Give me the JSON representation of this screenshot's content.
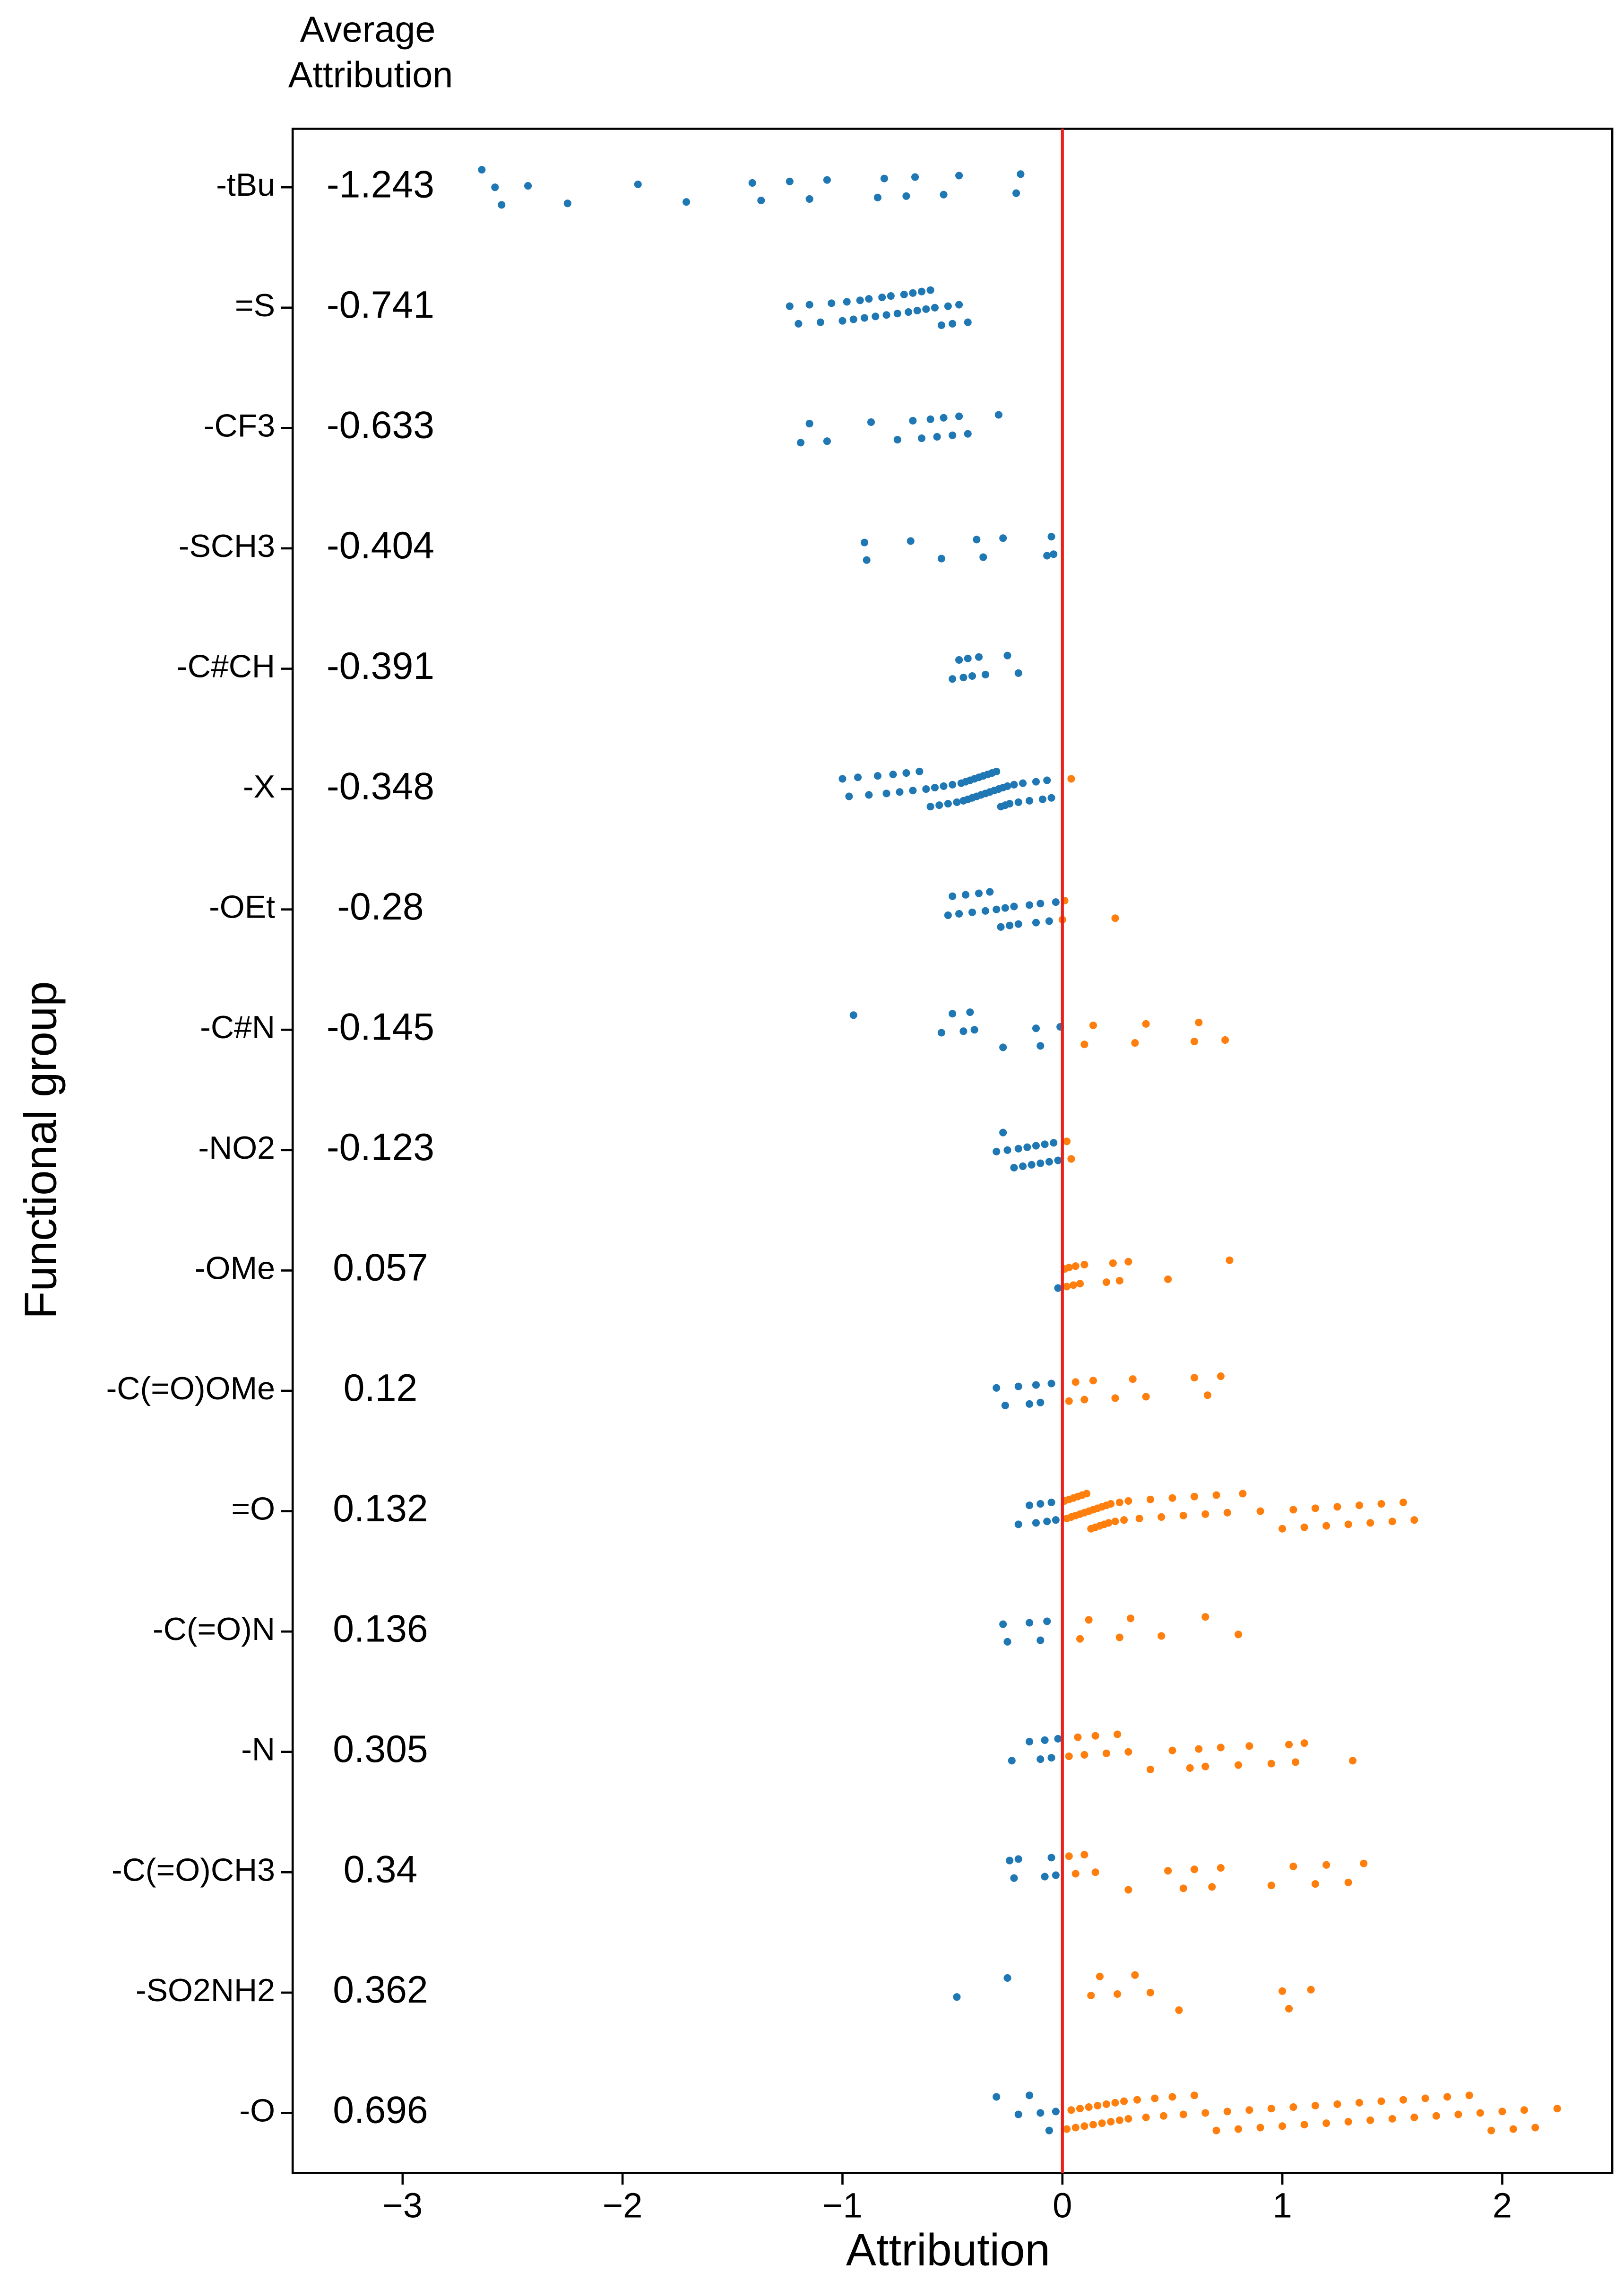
{
  "chart_data": {
    "type": "strip",
    "x_label": "Attribution",
    "y_label": "Functional group",
    "average_header": [
      "Average",
      "Attribution"
    ],
    "xlim": [
      -3.5,
      2.5
    ],
    "xticks": [
      {
        "value": -3,
        "label": "−3"
      },
      {
        "value": -2,
        "label": "−2"
      },
      {
        "value": -1,
        "label": "−1"
      },
      0,
      1,
      2
    ],
    "vline": 0,
    "vline_color": "#e8211c",
    "neg_color": "#1f77b4",
    "pos_color": "#ff7f0e",
    "avg_neg_color": "#ff0000",
    "avg_pos_color": "#008000",
    "groups": [
      {
        "name": "-tBu",
        "average": -1.243,
        "points": [
          -2.64,
          -2.58,
          -2.55,
          -2.43,
          -2.25,
          -1.93,
          -1.71,
          -1.41,
          -1.37,
          -1.24,
          -1.15,
          -1.07,
          -0.84,
          -0.81,
          -0.71,
          -0.67,
          -0.54,
          -0.47,
          -0.21,
          -0.19
        ]
      },
      {
        "name": "=S",
        "average": -0.741,
        "points": [
          -1.24,
          -1.2,
          -1.15,
          -1.1,
          -1.05,
          -1.0,
          -0.98,
          -0.95,
          -0.92,
          -0.9,
          -0.88,
          -0.85,
          -0.82,
          -0.8,
          -0.78,
          -0.75,
          -0.72,
          -0.7,
          -0.68,
          -0.66,
          -0.64,
          -0.62,
          -0.6,
          -0.58,
          -0.55,
          -0.52,
          -0.5,
          -0.47,
          -0.43
        ]
      },
      {
        "name": "-CF3",
        "average": -0.633,
        "points": [
          -1.19,
          -1.15,
          -1.07,
          -0.87,
          -0.75,
          -0.68,
          -0.64,
          -0.6,
          -0.57,
          -0.54,
          -0.5,
          -0.47,
          -0.43,
          -0.29
        ]
      },
      {
        "name": "-SCH3",
        "average": -0.404,
        "points": [
          -0.9,
          -0.89,
          -0.69,
          -0.55,
          -0.39,
          -0.36,
          -0.27,
          -0.07,
          -0.05,
          -0.04
        ]
      },
      {
        "name": "-C#CH",
        "average": -0.391,
        "points": [
          -0.5,
          -0.47,
          -0.45,
          -0.43,
          -0.41,
          -0.38,
          -0.35,
          -0.25,
          -0.2
        ]
      },
      {
        "name": "-X",
        "average": -0.348,
        "points": [
          -1.0,
          -0.97,
          -0.93,
          -0.88,
          -0.84,
          -0.8,
          -0.77,
          -0.74,
          -0.71,
          -0.68,
          -0.65,
          -0.62,
          -0.6,
          -0.58,
          -0.56,
          -0.54,
          -0.52,
          -0.5,
          -0.48,
          -0.46,
          -0.45,
          -0.44,
          -0.43,
          -0.42,
          -0.41,
          -0.4,
          -0.39,
          -0.38,
          -0.37,
          -0.36,
          -0.35,
          -0.34,
          -0.33,
          -0.32,
          -0.31,
          -0.3,
          -0.29,
          -0.28,
          -0.27,
          -0.26,
          -0.25,
          -0.24,
          -0.22,
          -0.2,
          -0.18,
          -0.15,
          -0.12,
          -0.09,
          -0.07,
          -0.05,
          0.04
        ]
      },
      {
        "name": "-OEt",
        "average": -0.28,
        "points": [
          -0.52,
          -0.5,
          -0.47,
          -0.44,
          -0.41,
          -0.38,
          -0.35,
          -0.33,
          -0.3,
          -0.28,
          -0.26,
          -0.24,
          -0.22,
          -0.2,
          -0.15,
          -0.12,
          -0.1,
          -0.06,
          -0.03,
          0.0,
          0.01,
          0.24
        ]
      },
      {
        "name": "-C#N",
        "average": -0.145,
        "points": [
          -0.95,
          -0.55,
          -0.5,
          -0.45,
          -0.42,
          -0.4,
          -0.27,
          -0.12,
          -0.1,
          -0.01,
          0.1,
          0.14,
          0.33,
          0.38,
          0.6,
          0.62,
          0.74
        ]
      },
      {
        "name": "-NO2",
        "average": -0.123,
        "points": [
          -0.3,
          -0.27,
          -0.25,
          -0.22,
          -0.2,
          -0.18,
          -0.16,
          -0.14,
          -0.12,
          -0.1,
          -0.08,
          -0.06,
          -0.04,
          -0.02,
          0.02,
          0.04
        ]
      },
      {
        "name": "-OMe",
        "average": 0.057,
        "points": [
          -0.02,
          0.01,
          0.02,
          0.03,
          0.05,
          0.06,
          0.08,
          0.1,
          0.2,
          0.23,
          0.26,
          0.3,
          0.48,
          0.76
        ]
      },
      {
        "name": "-C(=O)OMe",
        "average": 0.12,
        "points": [
          -0.3,
          -0.26,
          -0.2,
          -0.15,
          -0.12,
          -0.1,
          -0.05,
          0.03,
          0.06,
          0.1,
          0.14,
          0.24,
          0.32,
          0.38,
          0.6,
          0.66,
          0.72
        ]
      },
      {
        "name": "=O",
        "average": 0.132,
        "points": [
          -0.2,
          -0.15,
          -0.12,
          -0.1,
          -0.07,
          -0.05,
          -0.03,
          0.01,
          0.02,
          0.03,
          0.04,
          0.05,
          0.06,
          0.07,
          0.08,
          0.09,
          0.1,
          0.11,
          0.12,
          0.13,
          0.14,
          0.15,
          0.16,
          0.17,
          0.18,
          0.19,
          0.2,
          0.21,
          0.22,
          0.24,
          0.26,
          0.28,
          0.3,
          0.35,
          0.4,
          0.45,
          0.5,
          0.55,
          0.6,
          0.65,
          0.7,
          0.75,
          0.82,
          0.9,
          1.0,
          1.05,
          1.1,
          1.15,
          1.2,
          1.25,
          1.3,
          1.35,
          1.4,
          1.45,
          1.5,
          1.55,
          1.6
        ]
      },
      {
        "name": "-C(=O)N",
        "average": 0.136,
        "points": [
          -0.27,
          -0.25,
          -0.15,
          -0.1,
          -0.07,
          0.08,
          0.12,
          0.26,
          0.31,
          0.45,
          0.65,
          0.8
        ]
      },
      {
        "name": "-N",
        "average": 0.305,
        "points": [
          -0.23,
          -0.15,
          -0.1,
          -0.08,
          -0.05,
          -0.02,
          0.03,
          0.07,
          0.1,
          0.15,
          0.2,
          0.25,
          0.3,
          0.4,
          0.5,
          0.58,
          0.62,
          0.65,
          0.72,
          0.8,
          0.85,
          0.95,
          1.03,
          1.06,
          1.1,
          1.32
        ]
      },
      {
        "name": "-C(=O)CH3",
        "average": 0.34,
        "points": [
          -0.24,
          -0.22,
          -0.2,
          -0.08,
          -0.05,
          -0.03,
          0.03,
          0.06,
          0.1,
          0.15,
          0.3,
          0.48,
          0.55,
          0.6,
          0.68,
          0.72,
          0.95,
          1.05,
          1.15,
          1.2,
          1.3,
          1.37
        ]
      },
      {
        "name": "-SO2NH2",
        "average": 0.362,
        "points": [
          -0.48,
          -0.25,
          0.13,
          0.17,
          0.25,
          0.33,
          0.4,
          0.53,
          1.0,
          1.03,
          1.13
        ]
      },
      {
        "name": "-O",
        "average": 0.696,
        "points": [
          -0.3,
          -0.2,
          -0.15,
          -0.1,
          -0.06,
          -0.03,
          0.02,
          0.04,
          0.06,
          0.08,
          0.1,
          0.12,
          0.14,
          0.16,
          0.18,
          0.2,
          0.22,
          0.24,
          0.26,
          0.28,
          0.3,
          0.34,
          0.38,
          0.42,
          0.46,
          0.5,
          0.55,
          0.6,
          0.65,
          0.7,
          0.75,
          0.8,
          0.85,
          0.9,
          0.95,
          1.0,
          1.05,
          1.1,
          1.15,
          1.2,
          1.25,
          1.3,
          1.35,
          1.4,
          1.45,
          1.5,
          1.55,
          1.6,
          1.65,
          1.7,
          1.75,
          1.8,
          1.85,
          1.9,
          1.95,
          2.0,
          2.05,
          2.1,
          2.15,
          2.25
        ]
      }
    ]
  }
}
